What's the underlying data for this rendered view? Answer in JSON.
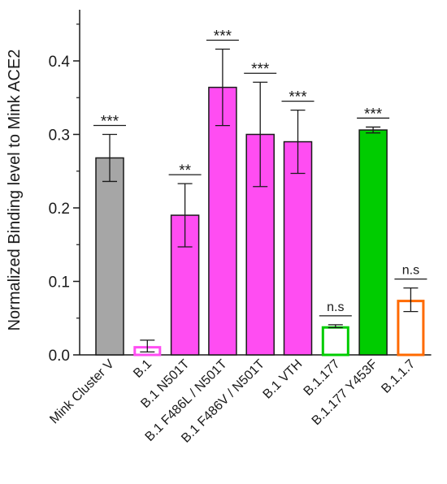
{
  "chart_data": {
    "type": "bar",
    "title": "",
    "xlabel": "",
    "ylabel": "Normalized Binding level to Mink ACE2",
    "ylim": [
      0,
      0.48
    ],
    "yticks": [
      0.0,
      0.1,
      0.2,
      0.3,
      0.4
    ],
    "ytick_labels": [
      "0.0",
      "0.1",
      "0.2",
      "0.3",
      "0.4"
    ],
    "grid": false,
    "categories": [
      "Mink Cluster V",
      "B.1",
      "B.1 N501T",
      "B.1 F486L / N501T",
      "B.1 F486V / N501T",
      "B.1 VTH",
      "B.1.177",
      "B.1.177 Y453F",
      "B.1.1.7"
    ],
    "values": [
      0.268,
      0.012,
      0.19,
      0.364,
      0.3,
      0.29,
      0.039,
      0.306,
      0.075
    ],
    "error": [
      0.032,
      0.008,
      0.043,
      0.052,
      0.071,
      0.043,
      0.002,
      0.004,
      0.016
    ],
    "significance": [
      "***",
      "",
      "**",
      "***",
      "***",
      "***",
      "n.s",
      "***",
      "n.s"
    ],
    "bar_fill": [
      "#a6a6a6",
      "#ffffff",
      "#ff4df2",
      "#ff4df2",
      "#ff4df2",
      "#ff4df2",
      "#ffffff",
      "#00cc00",
      "#ffffff"
    ],
    "bar_edge": [
      "#1a1a1a",
      "#ff4df2",
      "#1a1a1a",
      "#1a1a1a",
      "#1a1a1a",
      "#1a1a1a",
      "#00cc00",
      "#1a1a1a",
      "#ff6a00"
    ]
  }
}
